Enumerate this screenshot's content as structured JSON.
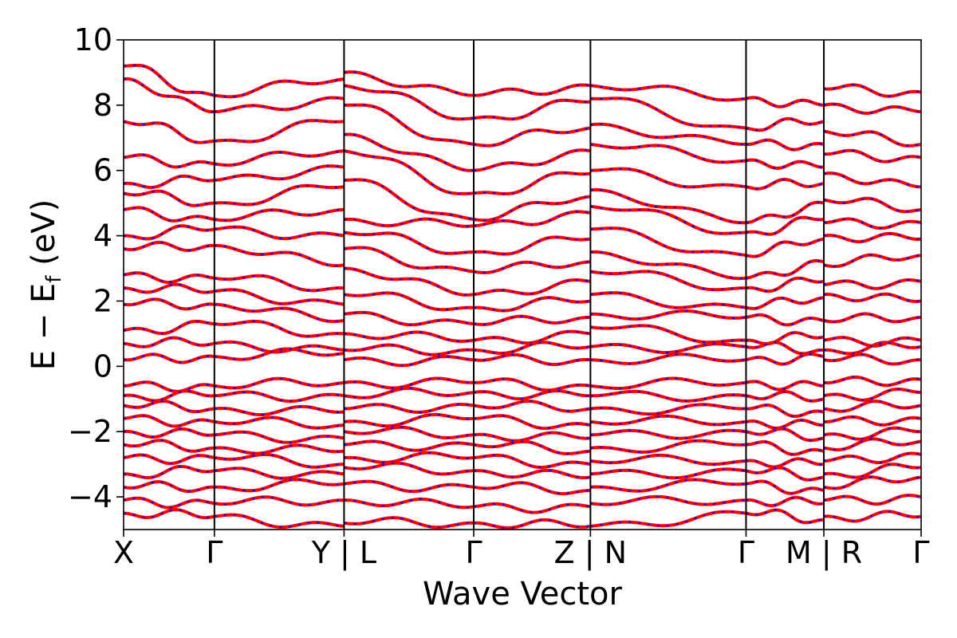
{
  "chart_data": {
    "type": "line",
    "title": "",
    "xlabel": "Wave Vector",
    "ylabel": "E − E",
    "ylabel_subscript": "f",
    "ylabel_unit": " (eV)",
    "ylim": [
      -5,
      10
    ],
    "yticks": [
      -4,
      -2,
      0,
      2,
      4,
      6,
      8,
      10
    ],
    "ytick_labels": [
      "−4",
      "−2",
      "0",
      "2",
      "4",
      "6",
      "8",
      "10"
    ],
    "xticks": [
      0,
      0.7,
      1.7,
      2.7,
      3.6,
      4.8,
      5.4,
      6.15
    ],
    "xtick_labels": [
      "X",
      "Γ",
      "Y | L",
      "Γ",
      "Z | N",
      "Γ",
      "M | R",
      "Γ"
    ],
    "xlim": [
      0,
      6.15
    ],
    "grid": false,
    "legend": "none",
    "colors": {
      "solid": "#ff0000",
      "dashed": "#0000ff",
      "vline": "#000000"
    },
    "segments": [
      {
        "x0": 0.0,
        "x1": 0.7,
        "to_start": [
          9.2,
          8.8,
          7.5,
          6.4,
          5.6,
          5.3,
          4.8,
          4.0,
          3.6,
          2.8,
          2.4,
          1.9,
          1.1,
          0.7,
          0.2
        ],
        "to_end": [
          8.3,
          7.8,
          6.9,
          6.2,
          5.7,
          5.0,
          4.5,
          4.2,
          3.7,
          2.7,
          2.3,
          1.9,
          1.3,
          0.7,
          0.3
        ],
        "vb_start": [
          -0.6,
          -0.9,
          -1.2,
          -1.6,
          -2.0,
          -2.4,
          -2.8,
          -3.3,
          -3.7,
          -4.1,
          -4.5
        ],
        "vb_end": [
          -0.6,
          -0.9,
          -1.3,
          -1.7,
          -2.1,
          -2.5,
          -2.8,
          -3.2,
          -3.7,
          -4.2,
          -4.6
        ]
      },
      {
        "x0": 0.7,
        "x1": 1.7,
        "to_start": [
          8.3,
          7.8,
          6.9,
          6.2,
          5.7,
          5.0,
          4.5,
          4.2,
          3.7,
          2.7,
          2.3,
          1.9,
          1.3,
          0.7,
          0.3
        ],
        "to_end": [
          8.8,
          8.2,
          7.5,
          6.6,
          6.1,
          5.5,
          4.8,
          4.0,
          3.1,
          2.4,
          1.9,
          1.4,
          1.0,
          0.5,
          0.4
        ],
        "vb_start": [
          -0.6,
          -0.9,
          -1.3,
          -1.7,
          -2.1,
          -2.5,
          -2.8,
          -3.2,
          -3.7,
          -4.2,
          -4.6
        ],
        "vb_end": [
          -0.5,
          -0.9,
          -1.4,
          -1.8,
          -2.2,
          -2.6,
          -3.0,
          -3.3,
          -3.6,
          -4.1,
          -4.9
        ]
      },
      {
        "x0": 1.7,
        "x1": 2.7,
        "to_start": [
          9.0,
          8.6,
          8.0,
          7.1,
          6.6,
          5.7,
          4.5,
          4.1,
          3.6,
          3.0,
          2.2,
          1.6,
          1.0,
          0.5,
          0.2
        ],
        "to_end": [
          8.3,
          7.6,
          6.8,
          6.0,
          5.3,
          4.5,
          4.3,
          3.5,
          2.9,
          2.2,
          1.8,
          1.3,
          0.8,
          0.5,
          0.2
        ],
        "vb_start": [
          -0.5,
          -0.9,
          -1.3,
          -1.7,
          -2.0,
          -2.4,
          -2.8,
          -3.1,
          -3.6,
          -4.1,
          -4.8
        ],
        "vb_end": [
          -0.5,
          -0.8,
          -1.2,
          -1.6,
          -2.1,
          -2.4,
          -2.8,
          -3.2,
          -3.7,
          -4.3,
          -4.8
        ]
      },
      {
        "x0": 2.7,
        "x1": 3.6,
        "to_start": [
          8.3,
          7.6,
          6.8,
          6.0,
          5.3,
          4.5,
          4.3,
          3.5,
          2.9,
          2.2,
          1.8,
          1.3,
          0.8,
          0.5,
          0.2
        ],
        "to_end": [
          8.6,
          8.1,
          7.3,
          6.6,
          5.9,
          5.2,
          4.7,
          3.9,
          3.2,
          2.6,
          2.0,
          1.5,
          1.0,
          0.6,
          0.2
        ],
        "vb_start": [
          -0.5,
          -0.8,
          -1.2,
          -1.6,
          -2.1,
          -2.4,
          -2.8,
          -3.2,
          -3.7,
          -4.3,
          -4.8
        ],
        "vb_end": [
          -0.6,
          -0.9,
          -1.3,
          -1.8,
          -2.2,
          -2.6,
          -3.0,
          -3.4,
          -3.8,
          -4.3,
          -4.9
        ]
      },
      {
        "x0": 3.6,
        "x1": 4.8,
        "to_start": [
          8.6,
          8.2,
          7.4,
          6.8,
          6.0,
          5.4,
          4.9,
          4.2,
          3.5,
          2.9,
          2.2,
          1.6,
          1.2,
          0.6,
          0.2
        ],
        "to_end": [
          8.2,
          7.3,
          6.8,
          6.3,
          5.5,
          4.4,
          4.1,
          3.4,
          2.7,
          2.4,
          1.8,
          1.5,
          0.8,
          0.6,
          0.2
        ],
        "vb_start": [
          -0.6,
          -0.9,
          -1.3,
          -1.7,
          -2.1,
          -2.5,
          -2.9,
          -3.3,
          -3.7,
          -4.2,
          -4.9
        ],
        "vb_end": [
          -0.5,
          -0.9,
          -1.3,
          -1.7,
          -2.0,
          -2.4,
          -2.9,
          -3.2,
          -3.6,
          -4.1,
          -4.5
        ]
      },
      {
        "x0": 4.8,
        "x1": 5.4,
        "to_start": [
          8.2,
          7.3,
          6.8,
          6.3,
          5.5,
          4.4,
          4.1,
          3.4,
          2.7,
          2.4,
          1.8,
          1.5,
          0.8,
          0.6,
          0.2
        ],
        "to_end": [
          8.0,
          7.5,
          6.8,
          6.1,
          5.6,
          5.0,
          4.5,
          3.9,
          3.2,
          2.6,
          2.1,
          1.4,
          0.9,
          0.5,
          0.3
        ],
        "vb_start": [
          -0.5,
          -0.9,
          -1.3,
          -1.7,
          -2.0,
          -2.4,
          -2.9,
          -3.2,
          -3.6,
          -4.1,
          -4.5
        ],
        "vb_end": [
          -0.6,
          -1.0,
          -1.4,
          -1.8,
          -2.2,
          -2.6,
          -3.0,
          -3.4,
          -3.8,
          -4.2,
          -4.7
        ]
      },
      {
        "x0": 5.4,
        "x1": 6.15,
        "to_start": [
          8.5,
          8.0,
          7.2,
          6.5,
          5.9,
          5.1,
          4.4,
          4.0,
          3.1,
          2.5,
          2.2,
          1.4,
          0.8,
          0.5,
          0.2
        ],
        "to_end": [
          8.4,
          7.8,
          6.8,
          6.4,
          5.5,
          4.8,
          4.4,
          3.9,
          3.4,
          2.6,
          2.0,
          1.5,
          0.8,
          0.6,
          0.2
        ],
        "vb_start": [
          -0.5,
          -0.9,
          -1.3,
          -1.7,
          -2.1,
          -2.5,
          -2.9,
          -3.3,
          -3.7,
          -4.1,
          -4.6
        ],
        "vb_end": [
          -0.4,
          -0.8,
          -1.2,
          -1.6,
          -2.0,
          -2.3,
          -2.7,
          -3.1,
          -3.4,
          -4.0,
          -4.6
        ]
      }
    ]
  }
}
